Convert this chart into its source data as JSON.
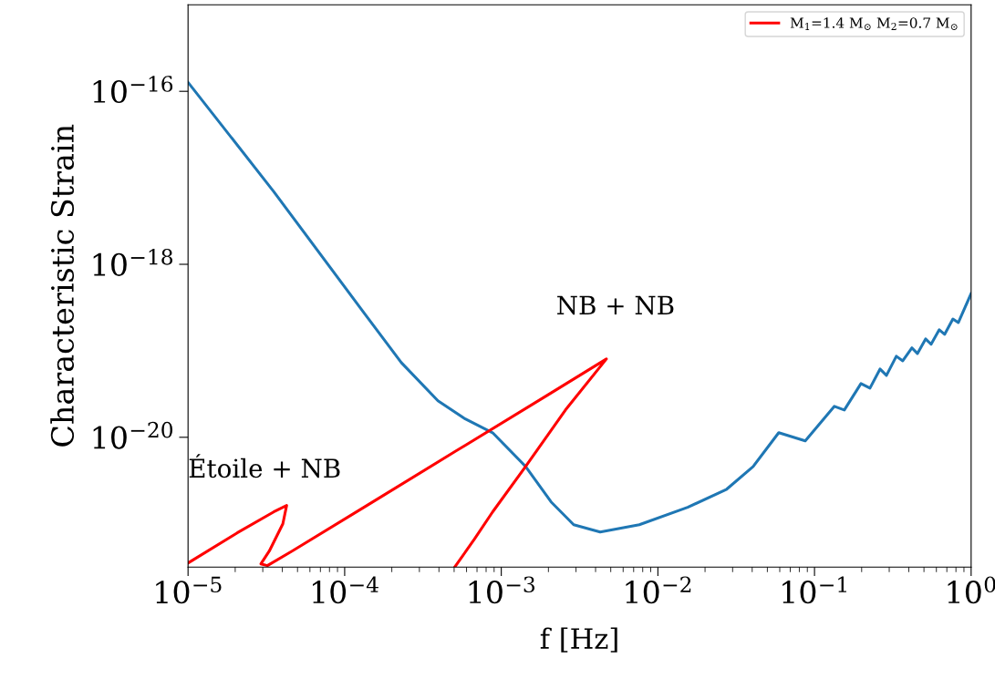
{
  "chart_data": {
    "type": "line",
    "xlabel": "f [Hz]",
    "ylabel": "Characteristic Strain",
    "log": "xy",
    "xlim": [
      1e-05,
      1
    ],
    "ylim": [
      3.16e-22,
      1e-15
    ],
    "xticks": [
      {
        "value": 1e-05,
        "label": "10$^{−5}$"
      },
      {
        "value": 0.0001,
        "label": "10$^{−4}$"
      },
      {
        "value": 0.001,
        "label": "10$^{−3}$"
      },
      {
        "value": 0.01,
        "label": "10$^{−2}$"
      },
      {
        "value": 0.1,
        "label": "10$^{−1}$"
      },
      {
        "value": 1,
        "label": "10$^{0}$"
      }
    ],
    "yticks": [
      {
        "value": 1e-16,
        "label": "10$^{−16}$"
      },
      {
        "value": 1e-18,
        "label": "10$^{−18}$"
      },
      {
        "value": 1e-20,
        "label": "10$^{−20}$"
      }
    ],
    "grid": false,
    "legend": "top right",
    "marker": "none",
    "line_style": "solid",
    "annotations": [
      "NB + NB",
      "Étoile + NB"
    ],
    "series": [
      {
        "color": "#1f77b4",
        "x": [
          1e-05,
          3.52e-05,
          0.000135,
          0.00023,
          0.000394,
          0.000589,
          0.00088,
          0.00143,
          0.00208,
          0.0029,
          0.00428,
          0.00761,
          0.0155,
          0.0275,
          0.0406,
          0.0591,
          0.0873,
          0.134,
          0.155,
          0.198,
          0.226,
          0.262,
          0.288,
          0.333,
          0.366,
          0.419,
          0.454,
          0.512,
          0.555,
          0.626,
          0.678,
          0.765,
          0.829,
          1.0
        ],
        "values": [
          1.27e-16,
          6.95e-18,
          2.64e-19,
          7.3e-20,
          2.64e-20,
          1.63e-20,
          1.13e-20,
          4.6e-21,
          1.79e-21,
          9.76e-22,
          8.04e-22,
          9.76e-22,
          1.55e-21,
          2.51e-21,
          4.6e-21,
          1.13e-20,
          9.08e-21,
          2.28e-20,
          2.07e-20,
          4.18e-20,
          3.7e-20,
          6.15e-20,
          5.2e-20,
          8.65e-20,
          7.66e-20,
          1.08e-19,
          9.3e-20,
          1.37e-19,
          1.19e-19,
          1.75e-19,
          1.55e-19,
          2.33e-19,
          2.12e-19,
          4.6e-19
        ]
      },
      {
        "name": "M$_{1}$=1.4 M$_{⊙}$ M$_{2}$=0.7 M$_{⊙}$",
        "color": "#ff0000",
        "x": [
          1e-05,
          2.06e-05,
          3.52e-05,
          4.26e-05,
          4.03e-05,
          3.3e-05,
          2.92e-05,
          3.21e-05,
          4.61e-05,
          0.000135,
          0.000514,
          0.00196,
          0.00469,
          0.00257,
          0.00143,
          0.00088,
          0.000673,
          0.000507
        ],
        "values": [
          3.52e-22,
          7.85e-22,
          1.37e-21,
          1.63e-21,
          1e-21,
          4.83e-22,
          3.44e-22,
          3.28e-22,
          4.83e-22,
          1.58e-21,
          6.95e-21,
          3.05e-20,
          8.04e-20,
          2.07e-20,
          4.6e-21,
          1.37e-21,
          6.62e-22,
          3.2e-22
        ]
      }
    ]
  }
}
